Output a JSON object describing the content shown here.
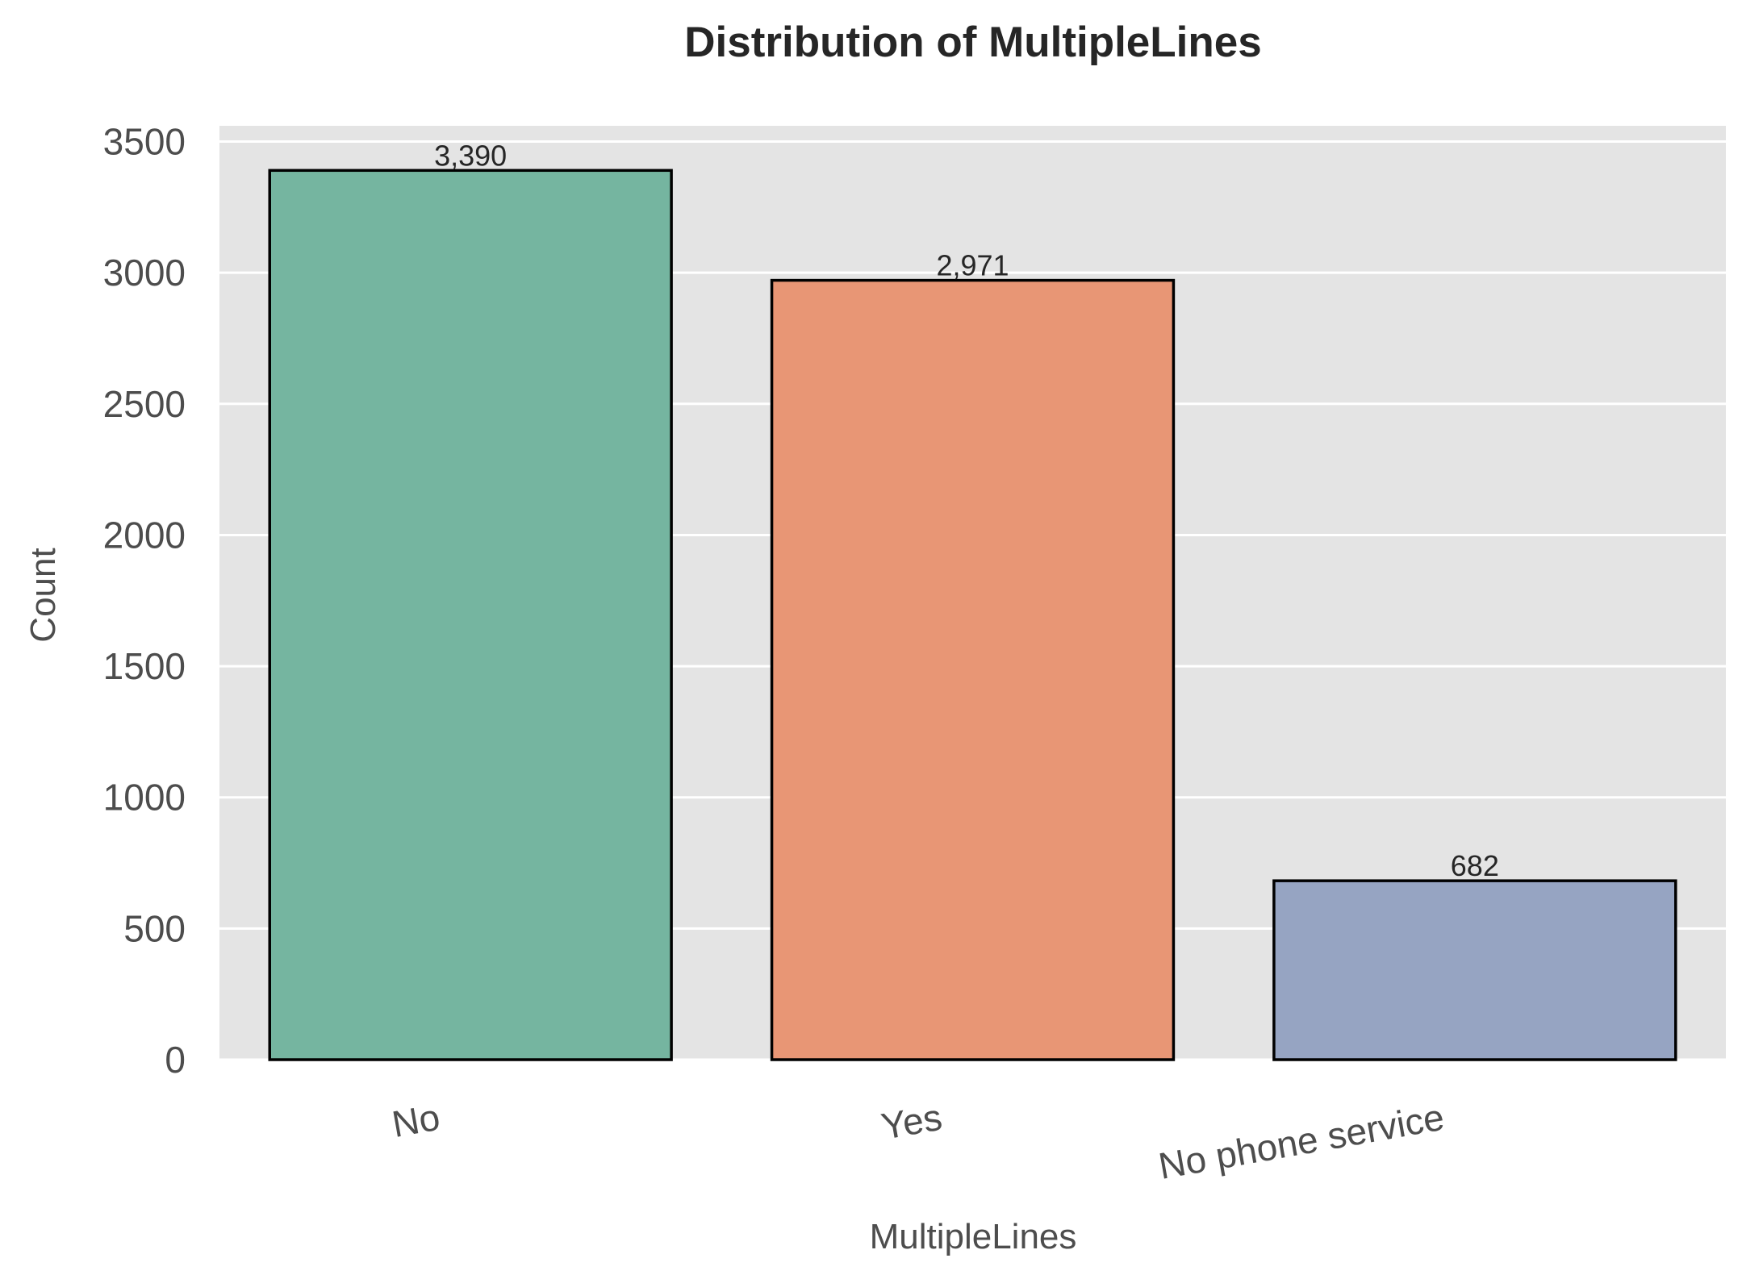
{
  "chart_data": {
    "type": "bar",
    "title": "Distribution of MultipleLines",
    "xlabel": "MultipleLines",
    "ylabel": "Count",
    "categories": [
      "No",
      "Yes",
      "No phone service"
    ],
    "values": [
      3390,
      2971,
      682
    ],
    "value_labels": [
      "3,390",
      "2,971",
      "682"
    ],
    "colors": [
      "#75b5a0",
      "#e89675",
      "#96a4c2"
    ],
    "edge_color": "#000000",
    "background_color": "#e4e4e4",
    "grid_color": "#ffffff",
    "grid": true,
    "ylim": [
      0,
      3560
    ],
    "yticks": [
      0,
      500,
      1000,
      1500,
      2000,
      2500,
      3000,
      3500
    ],
    "ytick_labels": [
      "0",
      "500",
      "1000",
      "1500",
      "2000",
      "2500",
      "3000",
      "3500"
    ],
    "xtick_rotation_deg": 10
  }
}
